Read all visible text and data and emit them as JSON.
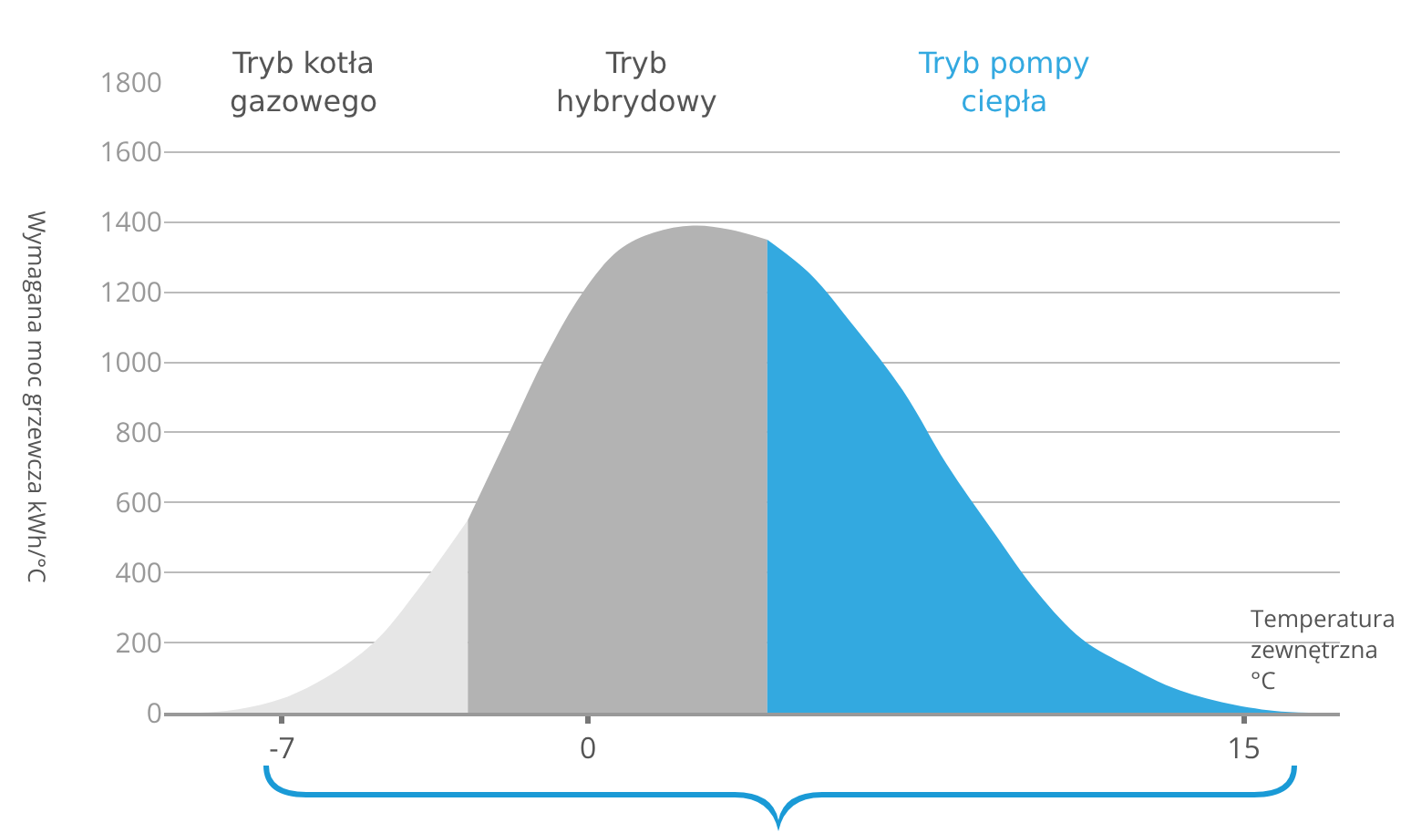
{
  "chart_data": {
    "type": "area",
    "xlabel": "Temperatura\nzewnętrzna\n°C",
    "ylabel": "Wymagana moc grzewcza kWh/°C",
    "series": [
      {
        "color": "#e6e6e6",
        "x": [
          -8.9,
          -8.0,
          -7.0,
          -6.0,
          -4.9,
          -3.9,
          -2.75
        ],
        "values": [
          0,
          10,
          40,
          100,
          200,
          350,
          550
        ]
      },
      {
        "color": "#b3b3b3",
        "x": [
          -2.75,
          -1.8,
          -0.96,
          -0.12,
          0.7,
          1.5,
          2.4,
          3.2,
          4.1
        ],
        "values": [
          550,
          800,
          1020,
          1200,
          1320,
          1370,
          1390,
          1380,
          1350
        ]
      },
      {
        "color": "#33a9e0",
        "x": [
          4.1,
          5.1,
          6.1,
          7.2,
          8.2,
          9.25,
          10.3,
          11.3,
          12.4,
          13.4,
          14.5,
          15.7,
          16.5
        ],
        "values": [
          1350,
          1250,
          1100,
          920,
          710,
          520,
          340,
          210,
          130,
          70,
          30,
          5,
          0
        ]
      }
    ],
    "xlim": [
      -9.7,
      17.2
    ],
    "xticks": [
      -7,
      0,
      15
    ],
    "ylim": [
      0,
      1800
    ],
    "yticks": [
      0,
      200,
      400,
      600,
      800,
      1000,
      1200,
      1400,
      1600,
      1800
    ],
    "grid": "y",
    "annotations": [
      "Tryb kotła\ngazowego",
      "Tryb\nhybrydowy",
      "Tryb pompy\nciepła"
    ]
  }
}
